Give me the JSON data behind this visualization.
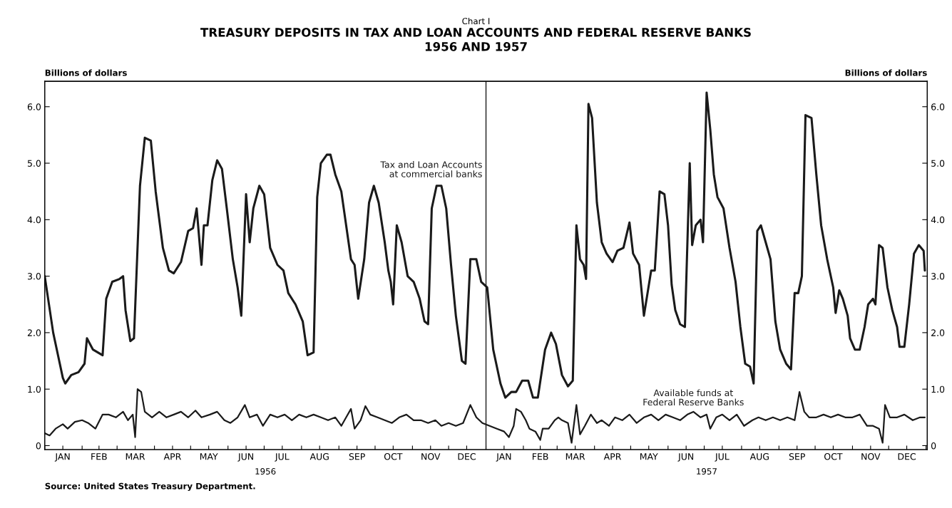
{
  "chart_data": {
    "type": "line",
    "title": "TREASURY DEPOSITS IN TAX AND LOAN ACCOUNTS AND FEDERAL RESERVE BANKS\n1956 AND 1957",
    "ylabel": "Billions of dollars",
    "y2label": "Billions of dollars",
    "annotations": [
      "Chart I",
      "1956",
      "1957",
      "Source: United States Treasury Department."
    ],
    "xlim": [
      "1956-01-01",
      "1958-01-02"
    ],
    "xticks": [
      {
        "value": "1956-01-01",
        "label": null
      },
      {
        "value": "1956-01-16",
        "label": "JAN"
      },
      {
        "value": "1956-02-01",
        "label": null
      },
      {
        "value": "1956-02-15",
        "label": "FEB"
      },
      {
        "value": "1956-03-01",
        "label": null
      },
      {
        "value": "1956-03-16",
        "label": "MAR"
      },
      {
        "value": "1956-04-01",
        "label": null
      },
      {
        "value": "1956-04-16",
        "label": "APR"
      },
      {
        "value": "1956-05-01",
        "label": null
      },
      {
        "value": "1956-05-16",
        "label": "MAY"
      },
      {
        "value": "1956-06-01",
        "label": null
      },
      {
        "value": "1956-06-16",
        "label": "JUN"
      },
      {
        "value": "1956-07-01",
        "label": null
      },
      {
        "value": "1956-07-16",
        "label": "JUL"
      },
      {
        "value": "1956-08-01",
        "label": null
      },
      {
        "value": "1956-08-16",
        "label": "AUG"
      },
      {
        "value": "1956-09-01",
        "label": null
      },
      {
        "value": "1956-09-16",
        "label": "SEP"
      },
      {
        "value": "1956-10-01",
        "label": null
      },
      {
        "value": "1956-10-16",
        "label": "OCT"
      },
      {
        "value": "1956-11-01",
        "label": null
      },
      {
        "value": "1956-11-16",
        "label": "NOV"
      },
      {
        "value": "1956-12-01",
        "label": null
      },
      {
        "value": "1956-12-16",
        "label": "DEC"
      },
      {
        "value": "1957-01-01",
        "label": null
      },
      {
        "value": "1957-01-16",
        "label": "JAN"
      },
      {
        "value": "1957-02-01",
        "label": null
      },
      {
        "value": "1957-02-15",
        "label": "FEB"
      },
      {
        "value": "1957-03-01",
        "label": null
      },
      {
        "value": "1957-03-16",
        "label": "MAR"
      },
      {
        "value": "1957-04-01",
        "label": null
      },
      {
        "value": "1957-04-16",
        "label": "APR"
      },
      {
        "value": "1957-05-01",
        "label": null
      },
      {
        "value": "1957-05-16",
        "label": "MAY"
      },
      {
        "value": "1957-06-01",
        "label": null
      },
      {
        "value": "1957-06-16",
        "label": "JUN"
      },
      {
        "value": "1957-07-01",
        "label": null
      },
      {
        "value": "1957-07-16",
        "label": "JUL"
      },
      {
        "value": "1957-08-01",
        "label": null
      },
      {
        "value": "1957-08-16",
        "label": "AUG"
      },
      {
        "value": "1957-09-01",
        "label": null
      },
      {
        "value": "1957-09-16",
        "label": "SEP"
      },
      {
        "value": "1957-10-01",
        "label": null
      },
      {
        "value": "1957-10-16",
        "label": "OCT"
      },
      {
        "value": "1957-11-01",
        "label": null
      },
      {
        "value": "1957-11-16",
        "label": "NOV"
      },
      {
        "value": "1957-12-01",
        "label": null
      },
      {
        "value": "1957-12-16",
        "label": "DEC"
      },
      {
        "value": "1958-01-01",
        "label": null
      }
    ],
    "ylim": [
      -0.07,
      6.45
    ],
    "yticks": [
      0,
      {
        "value": 1,
        "label": "1.0"
      },
      {
        "value": 2,
        "label": "2.0"
      },
      {
        "value": 3,
        "label": "3.0"
      },
      {
        "value": 4,
        "label": "4.0"
      },
      {
        "value": 5,
        "label": "5.0"
      },
      {
        "value": 6,
        "label": "6.0"
      }
    ],
    "y2lim": [
      -0.07,
      6.45
    ],
    "y2ticks": [
      0,
      {
        "value": 1,
        "label": "1.0"
      },
      {
        "value": 2,
        "label": "2.0"
      },
      {
        "value": 3,
        "label": "3.0"
      },
      {
        "value": 4,
        "label": "4.0"
      },
      {
        "value": 5,
        "label": "5.0"
      },
      {
        "value": 6,
        "label": "6.0"
      }
    ],
    "ref_lines": [
      {
        "axis": "x",
        "value": "1957-01-01",
        "color": "#1a1a1a"
      }
    ],
    "grid": false,
    "legend": false,
    "series": [
      {
        "name": "Tax and Loan Accounts\nat commercial banks",
        "color": "#1a1a1a",
        "x": [
          "1956-01-01",
          "1956-01-08",
          "1956-01-16",
          "1956-01-18",
          "1956-01-23",
          "1956-01-29",
          "1956-02-03",
          "1956-02-05",
          "1956-02-10",
          "1956-02-14",
          "1956-02-18",
          "1956-02-21",
          "1956-02-26",
          "1956-03-03",
          "1956-03-06",
          "1956-03-08",
          "1956-03-12",
          "1956-03-15",
          "1956-03-20",
          "1956-03-24",
          "1956-03-29",
          "1956-04-02",
          "1956-04-08",
          "1956-04-13",
          "1956-04-17",
          "1956-04-23",
          "1956-04-29",
          "1956-05-03",
          "1956-05-06",
          "1956-05-10",
          "1956-05-12",
          "1956-05-15",
          "1956-05-19",
          "1956-05-23",
          "1956-05-27",
          "1956-05-31",
          "1956-06-05",
          "1956-06-09",
          "1956-06-12",
          "1956-06-16",
          "1956-06-19",
          "1956-06-22",
          "1956-06-27",
          "1956-07-01",
          "1956-07-06",
          "1956-07-12",
          "1956-07-17",
          "1956-07-21",
          "1956-07-27",
          "1956-08-02",
          "1956-08-06",
          "1956-08-11",
          "1956-08-14",
          "1956-08-17",
          "1956-08-22",
          "1956-08-25",
          "1956-08-29",
          "1956-09-03",
          "1956-09-07",
          "1956-09-11",
          "1956-09-14",
          "1956-09-17",
          "1956-09-22",
          "1956-09-26",
          "1956-09-30",
          "1956-10-04",
          "1956-10-09",
          "1956-10-12",
          "1956-10-14",
          "1956-10-16",
          "1956-10-19",
          "1956-10-23",
          "1956-10-28",
          "1956-11-02",
          "1956-11-07",
          "1956-11-11",
          "1956-11-14",
          "1956-11-17",
          "1956-11-21",
          "1956-11-25",
          "1956-11-29",
          "1956-12-03",
          "1956-12-07",
          "1956-12-12",
          "1956-12-15",
          "1956-12-19",
          "1956-12-24",
          "1956-12-28",
          "1957-01-02",
          "1957-01-07",
          "1957-01-13",
          "1957-01-17",
          "1957-01-22",
          "1957-01-26",
          "1957-01-31",
          "1957-02-05",
          "1957-02-09",
          "1957-02-13",
          "1957-02-19",
          "1957-02-24",
          "1957-02-28",
          "1957-03-05",
          "1957-03-10",
          "1957-03-14",
          "1957-03-17",
          "1957-03-20",
          "1957-03-23",
          "1957-03-25",
          "1957-03-27",
          "1957-03-30",
          "1957-04-03",
          "1957-04-07",
          "1957-04-11",
          "1957-04-16",
          "1957-04-20",
          "1957-04-25",
          "1957-04-30",
          "1957-05-03",
          "1957-05-08",
          "1957-05-12",
          "1957-05-18",
          "1957-05-21",
          "1957-05-25",
          "1957-05-29",
          "1957-06-01",
          "1957-06-04",
          "1957-06-07",
          "1957-06-11",
          "1957-06-15",
          "1957-06-19",
          "1957-06-21",
          "1957-06-24",
          "1957-06-28",
          "1957-06-30",
          "1957-07-03",
          "1957-07-06",
          "1957-07-09",
          "1957-07-12",
          "1957-07-17",
          "1957-07-22",
          "1957-07-27",
          "1957-07-31",
          "1957-08-04",
          "1957-08-08",
          "1957-08-11",
          "1957-08-14",
          "1957-08-17",
          "1957-08-21",
          "1957-08-25",
          "1957-08-29",
          "1957-09-02",
          "1957-09-07",
          "1957-09-11",
          "1957-09-14",
          "1957-09-17",
          "1957-09-20",
          "1957-09-23",
          "1957-09-28",
          "1957-10-02",
          "1957-10-06",
          "1957-10-11",
          "1957-10-16",
          "1957-10-18",
          "1957-10-21",
          "1957-10-24",
          "1957-10-28",
          "1957-10-30",
          "1957-11-03",
          "1957-11-07",
          "1957-11-11",
          "1957-11-14",
          "1957-11-18",
          "1957-11-20",
          "1957-11-23",
          "1957-11-26",
          "1957-11-30",
          "1957-12-04",
          "1957-12-08",
          "1957-12-10",
          "1957-12-14",
          "1957-12-18",
          "1957-12-22",
          "1957-12-26",
          "1957-12-30",
          "1957-12-31"
        ],
        "values": [
          3.0,
          2.0,
          1.2,
          1.1,
          1.25,
          1.3,
          1.45,
          1.9,
          1.7,
          1.65,
          1.6,
          2.6,
          2.9,
          2.95,
          3.0,
          2.4,
          1.85,
          1.9,
          4.6,
          5.45,
          5.4,
          4.5,
          3.5,
          3.1,
          3.05,
          3.25,
          3.8,
          3.85,
          4.2,
          3.2,
          3.9,
          3.9,
          4.7,
          5.05,
          4.9,
          4.2,
          3.3,
          2.8,
          2.3,
          4.45,
          3.6,
          4.2,
          4.6,
          4.45,
          3.5,
          3.2,
          3.1,
          2.7,
          2.5,
          2.2,
          1.6,
          1.65,
          4.4,
          5.0,
          5.15,
          5.15,
          4.8,
          4.5,
          3.9,
          3.3,
          3.2,
          2.6,
          3.3,
          4.3,
          4.6,
          4.3,
          3.6,
          3.1,
          2.9,
          2.5,
          3.9,
          3.6,
          3.0,
          2.9,
          2.6,
          2.2,
          2.15,
          4.2,
          4.6,
          4.6,
          4.2,
          3.2,
          2.3,
          1.5,
          1.45,
          3.3,
          3.3,
          2.9,
          2.8,
          1.7,
          1.1,
          0.85,
          0.95,
          0.95,
          1.15,
          1.15,
          0.85,
          0.85,
          1.7,
          2.0,
          1.8,
          1.25,
          1.05,
          1.15,
          3.9,
          3.3,
          3.2,
          2.95,
          6.05,
          5.8,
          4.3,
          3.6,
          3.4,
          3.25,
          3.45,
          3.5,
          3.95,
          3.4,
          3.2,
          2.3,
          3.1,
          3.1,
          4.5,
          4.45,
          3.9,
          2.85,
          2.4,
          2.15,
          2.1,
          5.0,
          3.55,
          3.9,
          4.0,
          3.6,
          6.25,
          5.6,
          4.8,
          4.4,
          4.2,
          3.5,
          2.9,
          2.1,
          1.45,
          1.4,
          1.1,
          3.8,
          3.9,
          3.6,
          3.3,
          2.2,
          1.7,
          1.45,
          1.35,
          2.7,
          2.7,
          3.0,
          5.85,
          5.8,
          4.8,
          3.9,
          3.3,
          2.8,
          2.35,
          2.75,
          2.6,
          2.3,
          1.9,
          1.7,
          1.7,
          2.1,
          2.5,
          2.6,
          2.5,
          3.55,
          3.5,
          2.8,
          2.4,
          2.1,
          1.75,
          1.75,
          2.5,
          3.4,
          3.55,
          3.45,
          3.1
        ]
      },
      {
        "name": "Available funds at\nFederal Reserve Banks",
        "color": "#1a1a1a",
        "x": [
          "1956-01-01",
          "1956-01-05",
          "1956-01-10",
          "1956-01-16",
          "1956-01-20",
          "1956-01-26",
          "1956-02-01",
          "1956-02-06",
          "1956-02-12",
          "1956-02-18",
          "1956-02-23",
          "1956-02-29",
          "1956-03-06",
          "1956-03-10",
          "1956-03-14",
          "1956-03-16",
          "1956-03-18",
          "1956-03-21",
          "1956-03-24",
          "1956-03-30",
          "1956-04-05",
          "1956-04-11",
          "1956-04-17",
          "1956-04-23",
          "1956-04-29",
          "1956-05-05",
          "1956-05-10",
          "1956-05-17",
          "1956-05-23",
          "1956-05-29",
          "1956-06-03",
          "1956-06-09",
          "1956-06-15",
          "1956-06-19",
          "1956-06-25",
          "1956-06-30",
          "1956-07-06",
          "1956-07-12",
          "1956-07-18",
          "1956-07-24",
          "1956-07-30",
          "1956-08-05",
          "1956-08-11",
          "1956-08-17",
          "1956-08-23",
          "1956-08-29",
          "1956-09-03",
          "1956-09-07",
          "1956-09-11",
          "1956-09-14",
          "1956-09-19",
          "1956-09-23",
          "1956-09-27",
          "1956-10-03",
          "1956-10-09",
          "1956-10-15",
          "1956-10-21",
          "1956-10-27",
          "1956-11-02",
          "1956-11-08",
          "1956-11-14",
          "1956-11-20",
          "1956-11-25",
          "1956-12-01",
          "1956-12-07",
          "1956-12-13",
          "1956-12-19",
          "1956-12-24",
          "1956-12-29",
          "1957-01-04",
          "1957-01-10",
          "1957-01-16",
          "1957-01-20",
          "1957-01-24",
          "1957-01-26",
          "1957-01-30",
          "1957-02-03",
          "1957-02-06",
          "1957-02-11",
          "1957-02-15",
          "1957-02-17",
          "1957-02-22",
          "1957-02-27",
          "1957-03-02",
          "1957-03-05",
          "1957-03-10",
          "1957-03-13",
          "1957-03-17",
          "1957-03-20",
          "1957-03-24",
          "1957-03-29",
          "1957-04-03",
          "1957-04-07",
          "1957-04-13",
          "1957-04-18",
          "1957-04-24",
          "1957-04-30",
          "1957-05-06",
          "1957-05-12",
          "1957-05-18",
          "1957-05-24",
          "1957-05-30",
          "1957-06-05",
          "1957-06-11",
          "1957-06-17",
          "1957-06-22",
          "1957-06-28",
          "1957-07-03",
          "1957-07-06",
          "1957-07-11",
          "1957-07-16",
          "1957-07-22",
          "1957-07-28",
          "1957-08-03",
          "1957-08-10",
          "1957-08-15",
          "1957-08-21",
          "1957-08-27",
          "1957-09-02",
          "1957-09-08",
          "1957-09-14",
          "1957-09-18",
          "1957-09-22",
          "1957-09-26",
          "1957-10-02",
          "1957-10-08",
          "1957-10-14",
          "1957-10-20",
          "1957-10-26",
          "1957-11-01",
          "1957-11-07",
          "1957-11-13",
          "1957-11-18",
          "1957-11-23",
          "1957-11-26",
          "1957-11-28",
          "1957-12-02",
          "1957-12-08",
          "1957-12-14",
          "1957-12-21",
          "1957-12-27",
          "1957-12-31"
        ],
        "values": [
          0.22,
          0.18,
          0.3,
          0.38,
          0.3,
          0.42,
          0.45,
          0.4,
          0.3,
          0.55,
          0.55,
          0.5,
          0.6,
          0.45,
          0.55,
          0.15,
          1.0,
          0.95,
          0.6,
          0.5,
          0.6,
          0.5,
          0.55,
          0.6,
          0.5,
          0.62,
          0.5,
          0.55,
          0.6,
          0.45,
          0.4,
          0.5,
          0.72,
          0.5,
          0.55,
          0.35,
          0.55,
          0.5,
          0.55,
          0.45,
          0.55,
          0.5,
          0.55,
          0.5,
          0.45,
          0.5,
          0.35,
          0.5,
          0.65,
          0.3,
          0.45,
          0.7,
          0.55,
          0.5,
          0.45,
          0.4,
          0.5,
          0.55,
          0.45,
          0.45,
          0.4,
          0.45,
          0.35,
          0.4,
          0.35,
          0.4,
          0.72,
          0.5,
          0.4,
          0.35,
          0.3,
          0.25,
          0.15,
          0.35,
          0.65,
          0.6,
          0.45,
          0.3,
          0.25,
          0.1,
          0.3,
          0.3,
          0.45,
          0.5,
          0.45,
          0.4,
          0.05,
          0.72,
          0.2,
          0.35,
          0.55,
          0.4,
          0.45,
          0.35,
          0.5,
          0.45,
          0.55,
          0.4,
          0.5,
          0.55,
          0.45,
          0.55,
          0.5,
          0.45,
          0.55,
          0.6,
          0.5,
          0.55,
          0.3,
          0.5,
          0.55,
          0.45,
          0.55,
          0.35,
          0.45,
          0.5,
          0.45,
          0.5,
          0.45,
          0.5,
          0.45,
          0.95,
          0.6,
          0.5,
          0.5,
          0.55,
          0.5,
          0.55,
          0.5,
          0.5,
          0.55,
          0.35,
          0.35,
          0.3,
          0.05,
          0.72,
          0.5,
          0.5,
          0.55,
          0.45,
          0.5,
          0.5
        ]
      }
    ]
  }
}
